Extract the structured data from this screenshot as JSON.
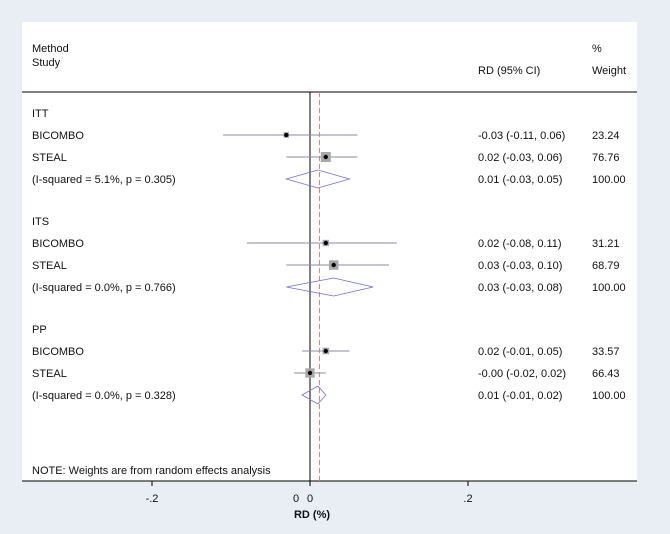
{
  "chart_data": {
    "type": "forest",
    "headers": {
      "method_label": "Method",
      "study_label": "Study",
      "ci_label": "RD (95% CI)",
      "weight_unit": "%",
      "weight_label": "Weight"
    },
    "x_axis": {
      "label": "RD (%)",
      "range": [
        -0.2,
        0.2
      ],
      "ticks": [
        {
          "value": -0.2,
          "label": "-.2"
        },
        {
          "value": 0,
          "label": "0"
        },
        {
          "value": 0.2,
          "label": ".2"
        }
      ],
      "extra_zero_label": "0"
    },
    "null_line": 0,
    "overall_line": 0.012,
    "groups": [
      {
        "name": "ITT",
        "studies": [
          {
            "name": "BICOMBO",
            "rd": -0.03,
            "lo": -0.11,
            "hi": 0.06,
            "ci_text": "-0.03 (-0.11, 0.06)",
            "weight_text": "23.24",
            "weight": 23.24
          },
          {
            "name": "STEAL",
            "rd": 0.02,
            "lo": -0.03,
            "hi": 0.06,
            "ci_text": "0.02 (-0.03, 0.06)",
            "weight_text": "76.76",
            "weight": 76.76
          }
        ],
        "pooled": {
          "label": "(I-squared = 5.1%, p = 0.305)",
          "rd": 0.01,
          "lo": -0.03,
          "hi": 0.05,
          "ci_text": "0.01 (-0.03, 0.05)",
          "weight_text": "100.00"
        }
      },
      {
        "name": "ITS",
        "studies": [
          {
            "name": "BICOMBO",
            "rd": 0.02,
            "lo": -0.08,
            "hi": 0.11,
            "ci_text": "0.02 (-0.08, 0.11)",
            "weight_text": "31.21",
            "weight": 31.21
          },
          {
            "name": "STEAL",
            "rd": 0.03,
            "lo": -0.03,
            "hi": 0.1,
            "ci_text": "0.03 (-0.03, 0.10)",
            "weight_text": "68.79",
            "weight": 68.79
          }
        ],
        "pooled": {
          "label": "(I-squared = 0.0%, p = 0.766)",
          "rd": 0.03,
          "lo": -0.03,
          "hi": 0.08,
          "ci_text": "0.03 (-0.03, 0.08)",
          "weight_text": "100.00"
        }
      },
      {
        "name": "PP",
        "studies": [
          {
            "name": "BICOMBO",
            "rd": 0.02,
            "lo": -0.01,
            "hi": 0.05,
            "ci_text": "0.02 (-0.01, 0.05)",
            "weight_text": "33.57",
            "weight": 33.57
          },
          {
            "name": "STEAL",
            "rd": -0.0,
            "lo": -0.02,
            "hi": 0.02,
            "ci_text": "-0.00 (-0.02, 0.02)",
            "weight_text": "66.43",
            "weight": 66.43
          }
        ],
        "pooled": {
          "label": "(I-squared = 0.0%, p = 0.328)",
          "rd": 0.01,
          "lo": -0.01,
          "hi": 0.02,
          "ci_text": "0.01 (-0.01, 0.02)",
          "weight_text": "100.00"
        }
      }
    ],
    "note": "NOTE: Weights are from random effects analysis",
    "colors": {
      "background": "#e8eef4",
      "panel": "#ffffff",
      "ci_line": "#8a8aa8",
      "diamond": "#7070d0",
      "overall_line": "#e08080",
      "box": "#a8a8a8",
      "point": "#000000"
    }
  }
}
